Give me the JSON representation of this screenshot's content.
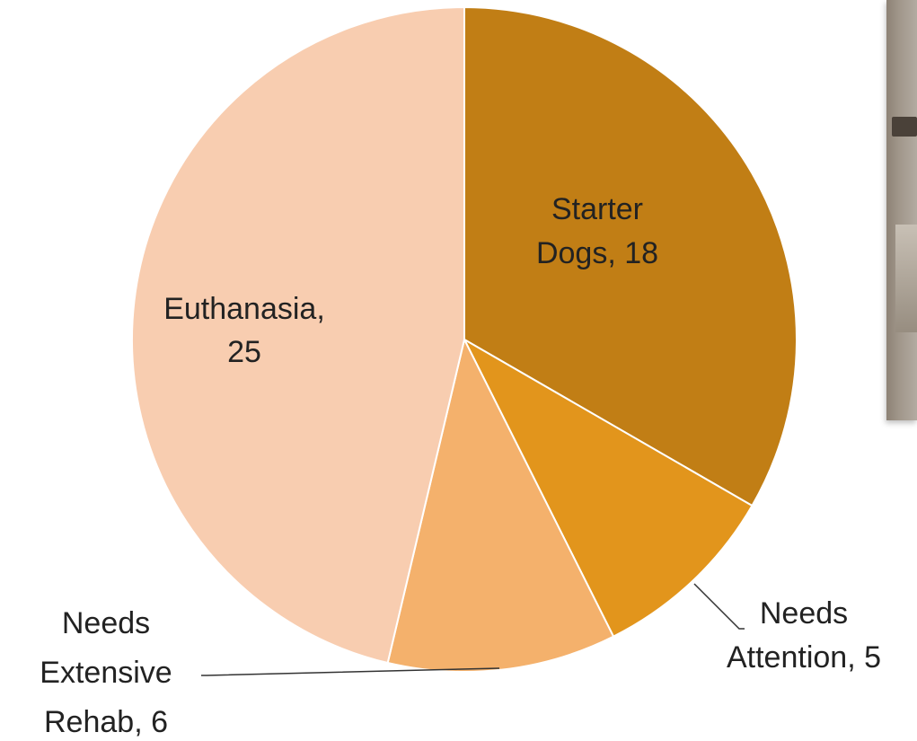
{
  "chart_data": {
    "type": "pie",
    "title": "",
    "start_angle_deg": 0,
    "direction": "clockwise",
    "slices": [
      {
        "label_line1": "Starter",
        "label_line2": "Dogs, 18",
        "name": "Starter Dogs",
        "value": 18,
        "color": "#c17e15"
      },
      {
        "label_line1": "Needs",
        "label_line2": "Attention, 5",
        "name": "Needs Attention",
        "value": 5,
        "color": "#e2951c"
      },
      {
        "label_line1": "Needs",
        "label_line2": "Extensive",
        "label_line3": "Rehab, 6",
        "name": "Needs Extensive Rehab",
        "value": 6,
        "color": "#f4b16c"
      },
      {
        "label_line1": "Euthanasia,",
        "label_line2": "25",
        "name": "Euthanasia",
        "value": 25,
        "color": "#f8cdb0"
      }
    ]
  },
  "photo": {
    "icon": "dog-photo-fragment"
  }
}
